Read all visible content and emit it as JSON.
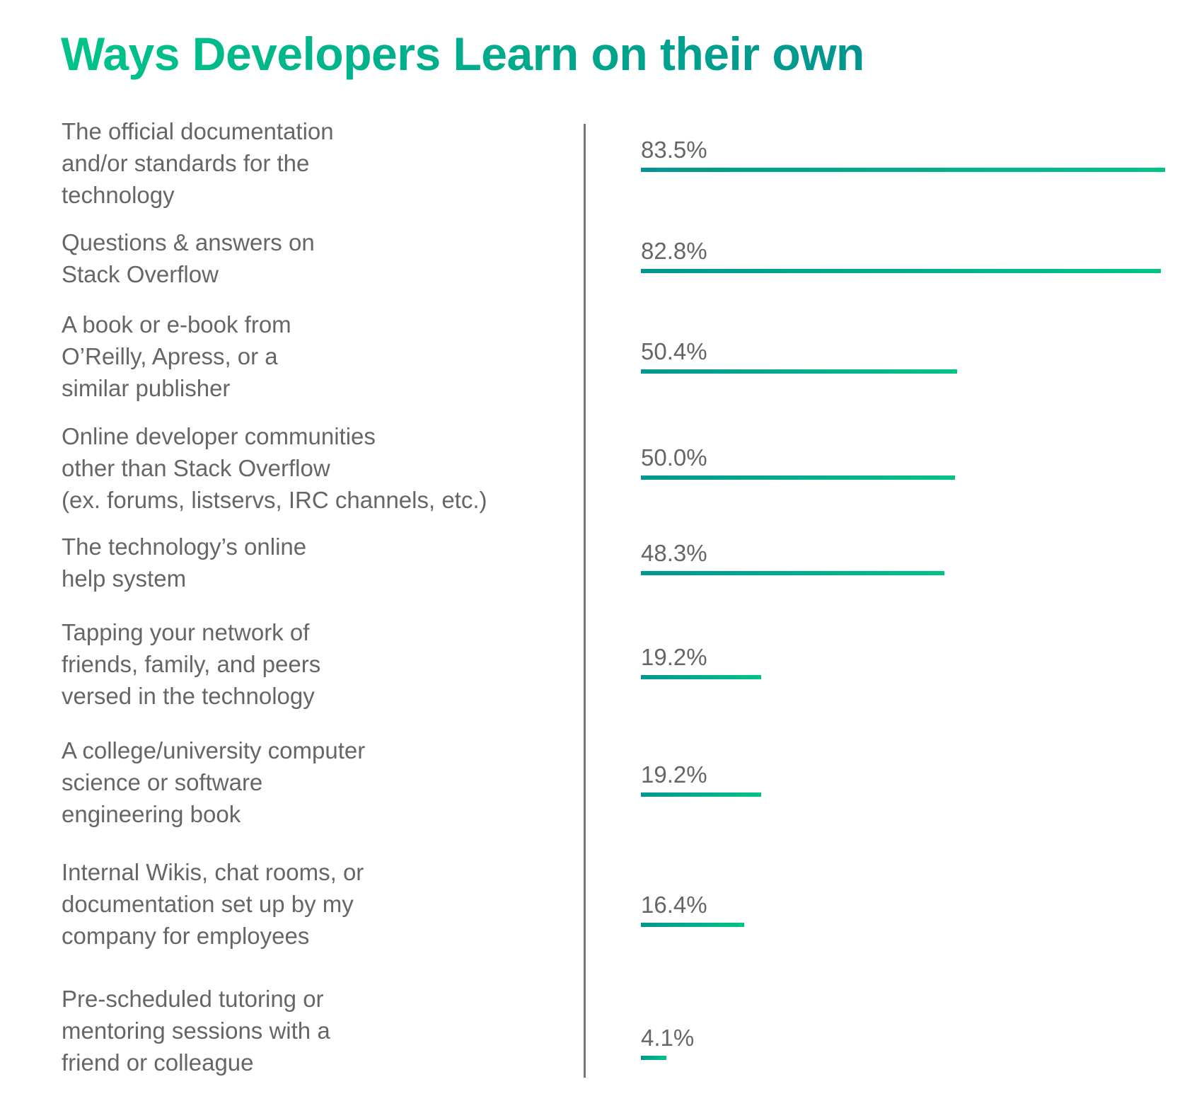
{
  "chart_data": {
    "type": "bar",
    "orientation": "horizontal",
    "title": "Ways Developers Learn on their own",
    "xlabel": "",
    "ylabel": "",
    "xlim": [
      0,
      83.5
    ],
    "grid": false,
    "colors": {
      "gradient_start": "#00968f",
      "gradient_end": "#00c389",
      "text": "#666666",
      "axis": "#777777"
    },
    "categories": [
      "The official documentation\nand/or standards for the\ntechnology",
      "Questions & answers on\nStack Overflow",
      "A book or e-book from\nO’Reilly, Apress, or a\nsimilar publisher",
      "Online developer communities\nother than Stack Overflow\n(ex. forums, listservs, IRC channels, etc.)",
      "The technology’s online\nhelp system",
      "Tapping your network of\nfriends, family, and peers\nversed in the technology",
      "A college/university computer\nscience or software\nengineering book",
      "Internal Wikis, chat rooms, or\ndocumentation set up by my\ncompany for employees",
      "Pre-scheduled tutoring or\nmentoring sessions with a\nfriend or colleague"
    ],
    "values": [
      83.5,
      82.8,
      50.4,
      50.0,
      48.3,
      19.2,
      19.2,
      16.4,
      4.1
    ],
    "value_labels": [
      "83.5%",
      "82.8%",
      "50.4%",
      "50.0%",
      "48.3%",
      "19.2%",
      "19.2%",
      "16.4%",
      "4.1%"
    ]
  }
}
